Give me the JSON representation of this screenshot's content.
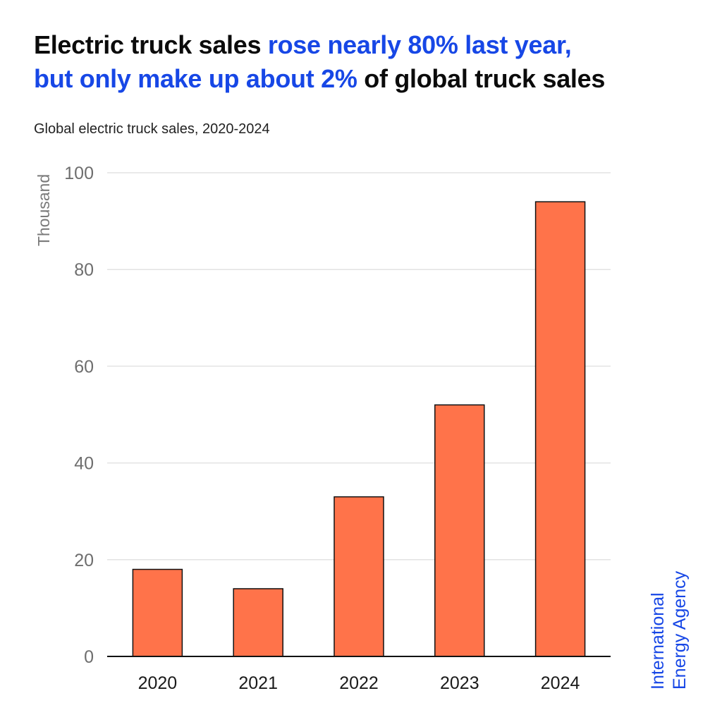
{
  "headline": {
    "part1": "Electric truck sales ",
    "part2": "rose nearly 80% last year,",
    "part3": "but only make up about 2%",
    "part4": " of global truck sales",
    "accent_color": "#1747e6"
  },
  "subtitle": "Global electric truck sales, 2020-2024",
  "brand": {
    "line1": "International",
    "line2": "Energy Agency"
  },
  "chart_data": {
    "type": "bar",
    "title": "Global electric truck sales, 2020-2024",
    "xlabel": "",
    "ylabel": "Thousand",
    "categories": [
      "2020",
      "2021",
      "2022",
      "2023",
      "2024"
    ],
    "values": [
      18,
      14,
      33,
      52,
      94
    ],
    "ylim": [
      0,
      100
    ],
    "yticks": [
      0,
      20,
      40,
      60,
      80,
      100
    ],
    "grid": true,
    "bar_color": "#ff734a"
  }
}
